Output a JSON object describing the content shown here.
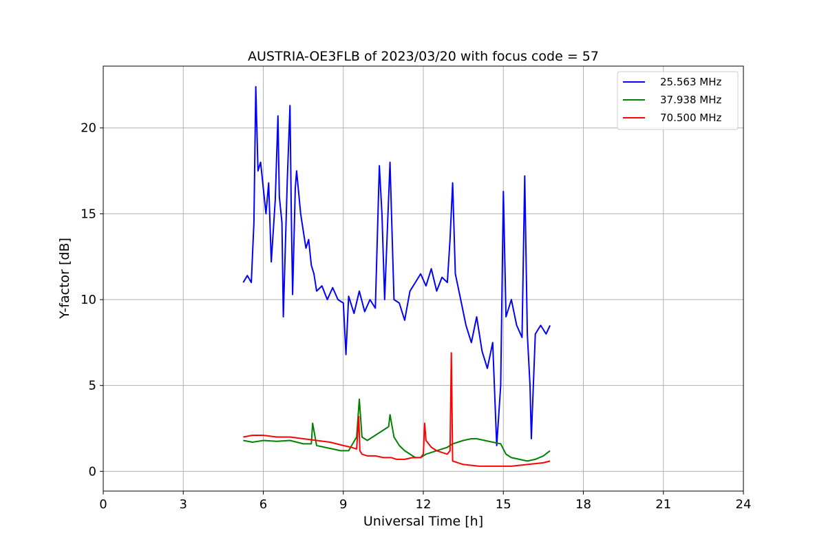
{
  "chart_data": {
    "type": "line",
    "title": "AUSTRIA-OE3FLB of 2023/03/20 with focus code = 57",
    "xlabel": "Universal Time [h]",
    "ylabel": "Y-factor [dB]",
    "xlim": [
      0,
      24
    ],
    "ylim": [
      -1.15,
      23.6
    ],
    "xticks": [
      0,
      3,
      6,
      9,
      12,
      15,
      18,
      21,
      24
    ],
    "yticks": [
      0,
      5,
      10,
      15,
      20
    ],
    "grid": true,
    "legend_position": "top-right",
    "series": [
      {
        "name": "25.563 MHz",
        "color": "#0000ff",
        "x": [
          5.25,
          5.4,
          5.55,
          5.65,
          5.72,
          5.8,
          5.9,
          6.0,
          6.1,
          6.2,
          6.3,
          6.45,
          6.55,
          6.6,
          6.7,
          6.75,
          6.9,
          7.0,
          7.05,
          7.1,
          7.2,
          7.25,
          7.4,
          7.5,
          7.6,
          7.7,
          7.8,
          7.9,
          8.0,
          8.2,
          8.4,
          8.6,
          8.8,
          9.0,
          9.1,
          9.2,
          9.4,
          9.6,
          9.8,
          10.0,
          10.2,
          10.35,
          10.45,
          10.55,
          10.65,
          10.75,
          10.9,
          11.1,
          11.3,
          11.5,
          11.7,
          11.9,
          12.1,
          12.3,
          12.5,
          12.7,
          12.9,
          13.0,
          13.1,
          13.2,
          13.4,
          13.6,
          13.8,
          14.0,
          14.2,
          14.4,
          14.6,
          14.75,
          14.9,
          15.0,
          15.1,
          15.3,
          15.5,
          15.7,
          15.8,
          15.9,
          16.0,
          16.05,
          16.2,
          16.4,
          16.6,
          16.75
        ],
        "y": [
          11.0,
          11.4,
          11.0,
          14.5,
          22.4,
          17.5,
          18.0,
          16.5,
          15.0,
          16.8,
          12.2,
          15.8,
          20.7,
          16.0,
          14.5,
          9.0,
          17.0,
          21.3,
          15.0,
          10.3,
          16.5,
          17.5,
          15.0,
          14.0,
          13.0,
          13.5,
          12.0,
          11.5,
          10.5,
          10.8,
          10.0,
          10.7,
          10.0,
          9.8,
          6.8,
          10.2,
          9.2,
          10.5,
          9.3,
          10.0,
          9.5,
          17.8,
          15.0,
          10.0,
          14.0,
          18.0,
          10.0,
          9.8,
          8.8,
          10.5,
          11.0,
          11.5,
          10.8,
          11.8,
          10.5,
          11.3,
          11.0,
          13.5,
          16.8,
          11.5,
          10.0,
          8.5,
          7.5,
          9.0,
          7.0,
          6.0,
          7.5,
          1.5,
          5.0,
          16.3,
          9.0,
          10.0,
          8.5,
          7.8,
          17.2,
          8.0,
          5.0,
          1.9,
          8.0,
          8.5,
          8.0,
          8.5
        ]
      },
      {
        "name": "37.938 MHz",
        "color": "#008000",
        "x": [
          5.25,
          5.6,
          6.0,
          6.5,
          7.0,
          7.5,
          7.8,
          7.85,
          8.0,
          8.3,
          8.6,
          8.9,
          9.2,
          9.5,
          9.6,
          9.7,
          9.9,
          10.1,
          10.3,
          10.5,
          10.7,
          10.75,
          10.9,
          11.1,
          11.3,
          11.5,
          11.7,
          11.9,
          12.1,
          12.3,
          12.5,
          12.7,
          12.9,
          13.1,
          13.3,
          13.5,
          13.8,
          14.0,
          14.3,
          14.6,
          14.9,
          15.1,
          15.3,
          15.6,
          15.9,
          16.2,
          16.5,
          16.75
        ],
        "y": [
          1.8,
          1.7,
          1.8,
          1.75,
          1.8,
          1.6,
          1.6,
          2.8,
          1.5,
          1.4,
          1.3,
          1.2,
          1.2,
          2.0,
          4.2,
          2.0,
          1.8,
          2.0,
          2.2,
          2.4,
          2.6,
          3.3,
          2.0,
          1.5,
          1.2,
          1.0,
          0.8,
          0.8,
          1.0,
          1.1,
          1.2,
          1.3,
          1.4,
          1.6,
          1.7,
          1.8,
          1.9,
          1.9,
          1.8,
          1.7,
          1.6,
          1.0,
          0.8,
          0.7,
          0.6,
          0.7,
          0.9,
          1.2
        ]
      },
      {
        "name": "70.500 MHz",
        "color": "#ff0000",
        "x": [
          5.25,
          5.6,
          6.0,
          6.5,
          7.0,
          7.5,
          8.0,
          8.5,
          9.0,
          9.3,
          9.5,
          9.58,
          9.62,
          9.7,
          9.9,
          10.2,
          10.5,
          10.8,
          11.0,
          11.3,
          11.6,
          11.9,
          12.0,
          12.05,
          12.1,
          12.3,
          12.5,
          12.7,
          12.9,
          13.0,
          13.05,
          13.1,
          13.3,
          13.5,
          13.8,
          14.1,
          14.4,
          14.7,
          15.0,
          15.3,
          15.6,
          15.9,
          16.2,
          16.5,
          16.75
        ],
        "y": [
          2.0,
          2.1,
          2.1,
          2.0,
          2.0,
          1.9,
          1.8,
          1.7,
          1.5,
          1.4,
          1.3,
          3.2,
          1.2,
          1.0,
          0.9,
          0.9,
          0.8,
          0.8,
          0.7,
          0.7,
          0.8,
          0.8,
          1.0,
          2.8,
          1.8,
          1.4,
          1.2,
          1.1,
          1.0,
          1.2,
          6.9,
          0.6,
          0.5,
          0.4,
          0.35,
          0.3,
          0.3,
          0.3,
          0.3,
          0.3,
          0.35,
          0.4,
          0.45,
          0.5,
          0.6
        ]
      }
    ]
  }
}
